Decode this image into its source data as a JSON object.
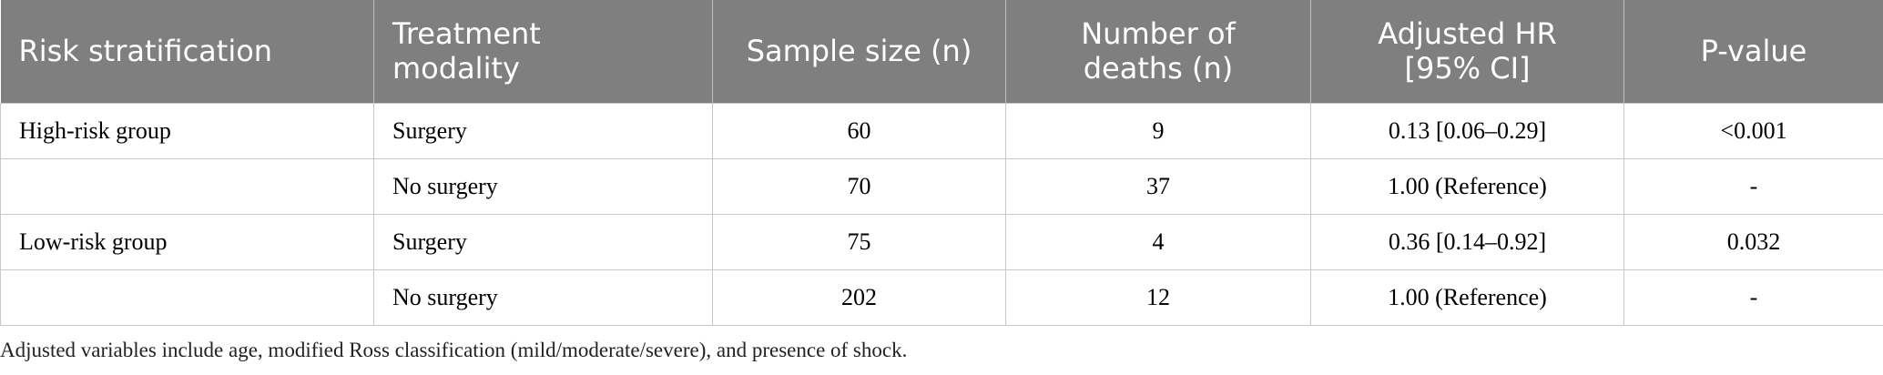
{
  "table": {
    "header": [
      [
        "Risk stratification"
      ],
      [
        "Treatment",
        "modality"
      ],
      [
        "Sample size (n)"
      ],
      [
        "Number of",
        "deaths (n)"
      ],
      [
        "Adjusted HR",
        "[95% CI]"
      ],
      [
        "P-value"
      ]
    ],
    "rows": [
      [
        "High-risk group",
        "Surgery",
        "60",
        "9",
        "0.13 [0.06–0.29]",
        "<0.001"
      ],
      [
        null,
        "No surgery",
        "70",
        "37",
        "1.00 (Reference)",
        "-"
      ],
      [
        "Low-risk group",
        "Surgery",
        "75",
        "4",
        "0.36 [0.14–0.92]",
        "0.032"
      ],
      [
        null,
        "No surgery",
        "202",
        "12",
        "1.00 (Reference)",
        "-"
      ]
    ]
  },
  "footnote": "Adjusted variables include age, modified Ross classification (mild/moderate/severe), and presence of shock."
}
